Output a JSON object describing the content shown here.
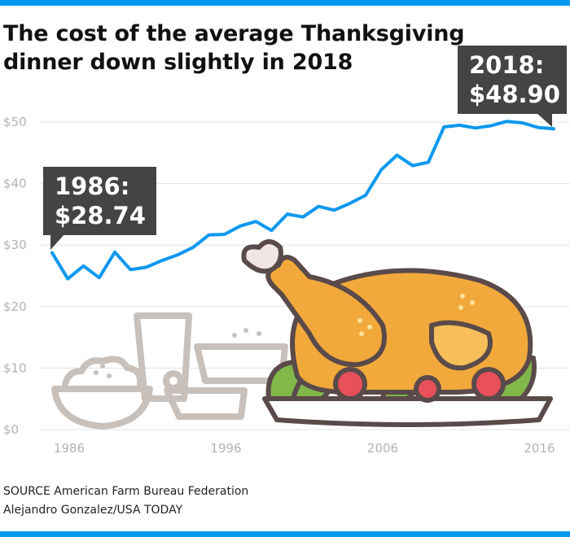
{
  "title": "The cost of the average Thanksgiving dinner down slightly in 2018",
  "callouts": {
    "start": {
      "year": "1986:",
      "value": "$28.74"
    },
    "end": {
      "year": "2018:",
      "value": "$48.90"
    }
  },
  "footer": {
    "source": "SOURCE American Farm Bureau Federation",
    "credit": "Alejandro Gonzalez/USA TODAY"
  },
  "colors": {
    "line": "#0d98f0",
    "bars": "#0098ee",
    "callout_bg": "#444444",
    "grid": "#e3e3e3",
    "illustration_gray": "#c8c1bb",
    "turkey": "#f2a93b",
    "outline": "#5a4a4a"
  },
  "chart_data": {
    "type": "line",
    "title": "The cost of the average Thanksgiving dinner down slightly in 2018",
    "xlabel": "",
    "ylabel": "",
    "x": [
      1986,
      1987,
      1988,
      1989,
      1990,
      1991,
      1992,
      1993,
      1994,
      1995,
      1996,
      1997,
      1998,
      1999,
      2000,
      2001,
      2002,
      2003,
      2004,
      2005,
      2006,
      2007,
      2008,
      2009,
      2010,
      2011,
      2012,
      2013,
      2014,
      2015,
      2016,
      2017,
      2018
    ],
    "series": [
      {
        "values": [
          28.74,
          24.51,
          26.61,
          24.7,
          28.85,
          26.0,
          26.39,
          27.49,
          28.4,
          29.64,
          31.66,
          31.75,
          33.09,
          33.83,
          32.37,
          35.04,
          34.56,
          36.28,
          35.68,
          36.78,
          38.1,
          42.26,
          44.61,
          42.91,
          43.47,
          49.2,
          49.48,
          49.04,
          49.41,
          50.11,
          49.87,
          49.12,
          48.9
        ]
      }
    ],
    "xticks": [
      "1986",
      "1996",
      "2006",
      "2016"
    ],
    "yticks": [
      "$0",
      "$10",
      "$20",
      "$30",
      "$40",
      "$50"
    ],
    "xlim": [
      1986,
      2018
    ],
    "ylim": [
      0,
      50
    ],
    "grid": true,
    "legend": "none"
  }
}
